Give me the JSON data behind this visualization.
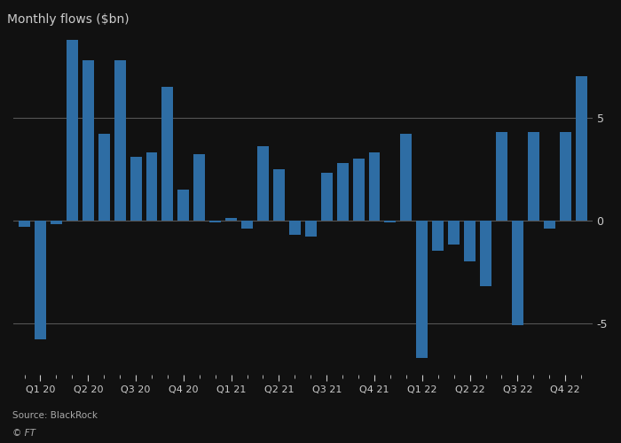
{
  "title": "Monthly flows ($bn)",
  "source": "Source: BlackRock",
  "watermark": "© FT",
  "bar_color": "#2e6da4",
  "background_color": "#111111",
  "plot_bg_color": "#111111",
  "text_color": "#cccccc",
  "grid_color": "#555555",
  "ylim": [
    -7.5,
    9.0
  ],
  "yticks": [
    -5,
    0,
    5
  ],
  "quarter_labels": [
    "Q1 20",
    "Q2 20",
    "Q3 20",
    "Q4 20",
    "Q1 21",
    "Q2 21",
    "Q3 21",
    "Q4 21",
    "Q1 22",
    "Q2 22",
    "Q3 22",
    "Q4 22"
  ],
  "values": [
    -0.3,
    -5.8,
    -0.2,
    8.8,
    7.8,
    4.2,
    7.8,
    3.1,
    3.3,
    6.5,
    1.5,
    3.2,
    -0.1,
    0.1,
    -0.4,
    3.6,
    2.5,
    -0.7,
    -0.8,
    2.3,
    2.8,
    3.0,
    3.3,
    -0.1,
    4.2,
    -6.7,
    -1.5,
    -1.2,
    -2.0,
    -3.2,
    4.3,
    -5.1,
    4.3,
    -0.4,
    4.3,
    7.0
  ]
}
